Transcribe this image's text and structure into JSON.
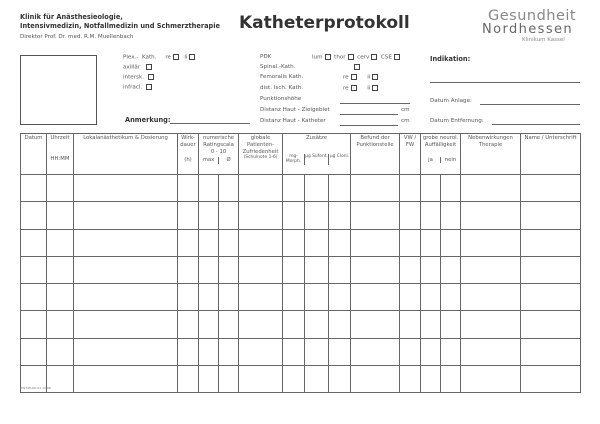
{
  "header": {
    "clinic_line1": "Klinik für Anästhesieologie,",
    "clinic_line2": "Intensivmedizin, Notfallmedizin und Schmerztherapie",
    "director": "Direktor Prof. Dr. med. R.M. Muellenbach",
    "title": "Katheterprotokoll"
  },
  "logo": {
    "line1": "Gesundheit",
    "line2": "Nordhessen",
    "line3": "Klinikum Kassel"
  },
  "left": {
    "plex": "Plex.-",
    "kath": "Kath.",
    "re": "re",
    "li": "li",
    "axillar": "axillär",
    "intersk": "intersk.",
    "infracl": "infracl.",
    "anmerkung": "Anmerkung:"
  },
  "mid": {
    "pdk": "PDK",
    "lum": "lum",
    "thor": "thor",
    "cerv": "cerv",
    "cse": "CSE",
    "spinal": "Spinal.-Kath.",
    "femoralis": "Femoralis Kath.",
    "dist": "dist. Isch. Kath.",
    "re": "re",
    "li": "li",
    "punktion": "Punktionshöhe",
    "ziel": "Distanz Haut - Zielgebiet",
    "katheter": "Distanz Haut - Katheter",
    "cm": "cm"
  },
  "right": {
    "indikation": "Indikation:",
    "anlage": "Datum Anlage:",
    "entfernung": "Datum Entfernung:"
  },
  "table": {
    "datum": "Datum",
    "uhrzeit": "Uhrzeit",
    "hhmm": "HH:MM",
    "lokal": "Lokalanästhetikum & Dosierung",
    "wirk": "Wirk-dauer",
    "h": "(h)",
    "nrs": "numerische Ratingscala 0 - 10",
    "max": "max",
    "avg": "Ø",
    "glob": "globale Patienten-Zufriedenheit",
    "schul": "(Schulnote 1-6)",
    "zus": "Zusätze",
    "mg": "mg-Morph.",
    "sufent": "µg Sufent.",
    "cloni": "µg Cloni.",
    "befund": "Befund der Punktionstelle",
    "vw": "VW / FW",
    "grob": "grobe neurol. Auffälligkeit",
    "ja": "ja",
    "nein": "nein",
    "neben": "Nebenwirkungen Therapie",
    "name": "Name / Unterschrift",
    "row_count": 8
  },
  "footer": {
    "code": "HW798-KO-01 12/08"
  }
}
